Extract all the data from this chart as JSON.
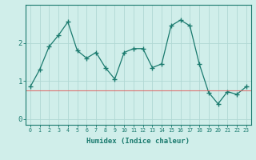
{
  "x": [
    0,
    1,
    2,
    3,
    4,
    5,
    6,
    7,
    8,
    9,
    10,
    11,
    12,
    13,
    14,
    15,
    16,
    17,
    18,
    19,
    20,
    21,
    22,
    23
  ],
  "y": [
    0.85,
    1.3,
    1.9,
    2.2,
    2.55,
    1.8,
    1.6,
    1.75,
    1.35,
    1.05,
    1.75,
    1.85,
    1.85,
    1.35,
    1.45,
    2.45,
    2.6,
    2.45,
    1.45,
    0.7,
    0.4,
    0.72,
    0.65,
    0.85
  ],
  "line_color": "#1a7a6e",
  "marker": "+",
  "bg_color": "#d0eeea",
  "grid_color": "#b0d8d4",
  "axis_color": "#1a7a6e",
  "tick_color": "#1a7a6e",
  "label_color": "#1a7a6e",
  "xlabel": "Humidex (Indice chaleur)",
  "ylim": [
    -0.15,
    3.0
  ],
  "xlim": [
    -0.5,
    23.5
  ],
  "yticks": [
    0,
    1,
    2
  ],
  "xticks": [
    0,
    1,
    2,
    3,
    4,
    5,
    6,
    7,
    8,
    9,
    10,
    11,
    12,
    13,
    14,
    15,
    16,
    17,
    18,
    19,
    20,
    21,
    22,
    23
  ],
  "hline_y": 0.75,
  "hline_color": "#e06060"
}
